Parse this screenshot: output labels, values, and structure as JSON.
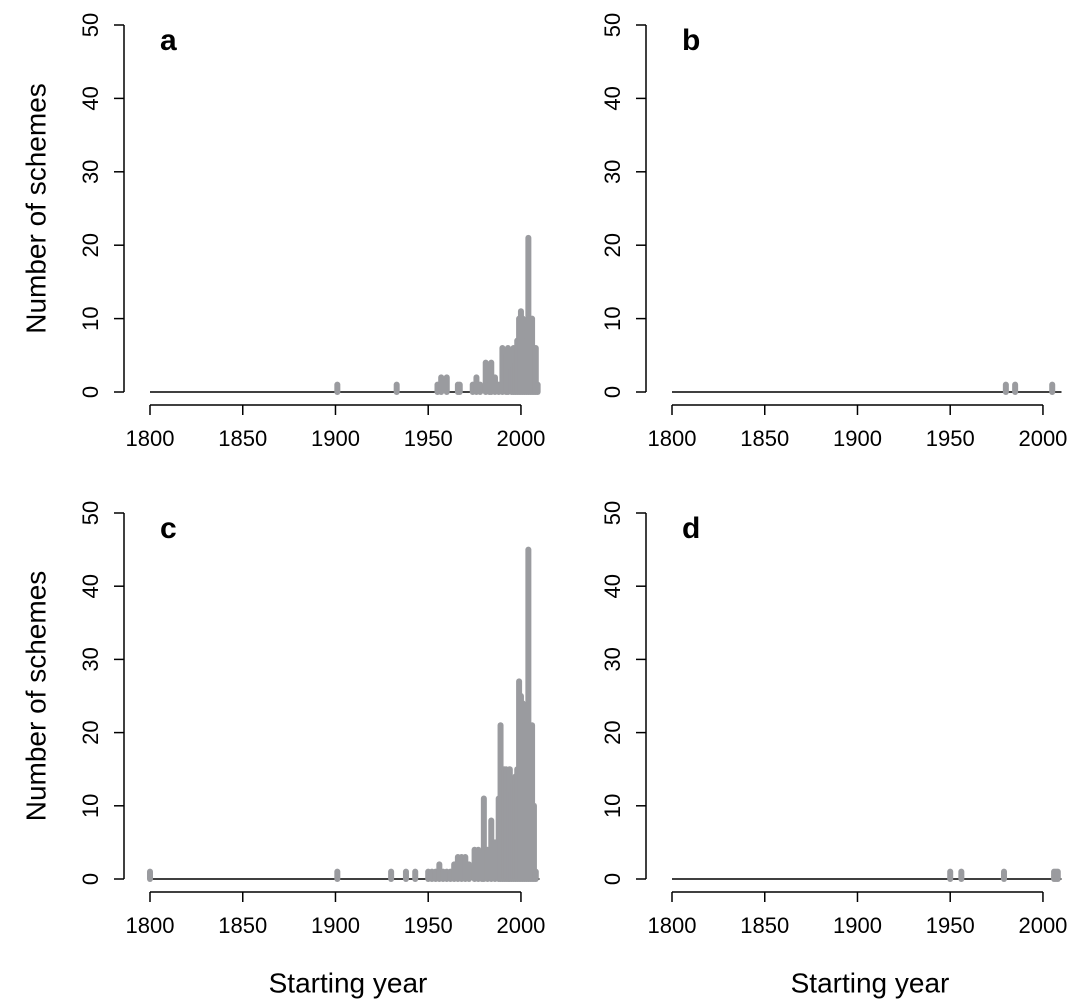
{
  "chart_data": [
    {
      "type": "spike",
      "title": "a",
      "y_label": "Number of schemes",
      "color": "#9a9b9f",
      "x": [
        1901,
        1933,
        1955,
        1957,
        1960,
        1966,
        1967,
        1974,
        1976,
        1978,
        1981,
        1983,
        1984,
        1986,
        1988,
        1990,
        1992,
        1993,
        1995,
        1996,
        1997,
        1998,
        1999,
        2000,
        2001,
        2002,
        2003,
        2004,
        2005,
        2006,
        2007,
        2008,
        2009
      ],
      "values": [
        1,
        1,
        1,
        2,
        2,
        1,
        1,
        1,
        2,
        1,
        4,
        1,
        4,
        2,
        1,
        6,
        5,
        6,
        3,
        6,
        4,
        7,
        10,
        11,
        10,
        8,
        7,
        21,
        10,
        10,
        6,
        6,
        1
      ],
      "xlim": [
        1800,
        2010
      ],
      "ylim": [
        0,
        50
      ],
      "xticks": [
        1800,
        1850,
        1900,
        1950,
        2000
      ],
      "yticks": [
        0,
        10,
        20,
        30,
        40,
        50
      ]
    },
    {
      "type": "spike",
      "title": "b",
      "color": "#9a9b9f",
      "x": [
        1980,
        1985,
        2005
      ],
      "values": [
        1,
        1,
        1
      ],
      "xlim": [
        1800,
        2010
      ],
      "ylim": [
        0,
        50
      ],
      "xticks": [
        1800,
        1850,
        1900,
        1950,
        2000
      ],
      "yticks": [
        0,
        10,
        20,
        30,
        40,
        50
      ]
    },
    {
      "type": "spike",
      "title": "c",
      "y_label": "Number of schemes",
      "x_label": "Starting year",
      "color": "#9a9b9f",
      "x": [
        1800,
        1901,
        1930,
        1938,
        1943,
        1950,
        1952,
        1954,
        1956,
        1958,
        1960,
        1962,
        1964,
        1966,
        1968,
        1970,
        1972,
        1975,
        1977,
        1979,
        1980,
        1982,
        1984,
        1986,
        1988,
        1989,
        1990,
        1991,
        1992,
        1993,
        1994,
        1995,
        1996,
        1997,
        1998,
        1999,
        2000,
        2001,
        2002,
        2003,
        2004,
        2005,
        2006,
        2007,
        2008
      ],
      "values": [
        1,
        1,
        1,
        1,
        1,
        1,
        1,
        1,
        2,
        1,
        1,
        1,
        2,
        3,
        3,
        3,
        2,
        4,
        4,
        2,
        11,
        4,
        8,
        5,
        11,
        21,
        12,
        15,
        15,
        12,
        15,
        12,
        13,
        14,
        15,
        27,
        25,
        24,
        21,
        21,
        45,
        21,
        21,
        10,
        1
      ],
      "xlim": [
        1800,
        2010
      ],
      "ylim": [
        0,
        50
      ],
      "xticks": [
        1800,
        1850,
        1900,
        1950,
        2000
      ],
      "yticks": [
        0,
        10,
        20,
        30,
        40,
        50
      ]
    },
    {
      "type": "spike",
      "title": "d",
      "x_label": "Starting year",
      "color": "#9a9b9f",
      "x": [
        1950,
        1956,
        1979,
        2006,
        2007,
        2008
      ],
      "values": [
        1,
        1,
        1,
        1,
        1,
        1
      ],
      "xlim": [
        1800,
        2010
      ],
      "ylim": [
        0,
        50
      ],
      "xticks": [
        1800,
        1850,
        1900,
        1950,
        2000
      ],
      "yticks": [
        0,
        10,
        20,
        30,
        40,
        50
      ]
    }
  ]
}
